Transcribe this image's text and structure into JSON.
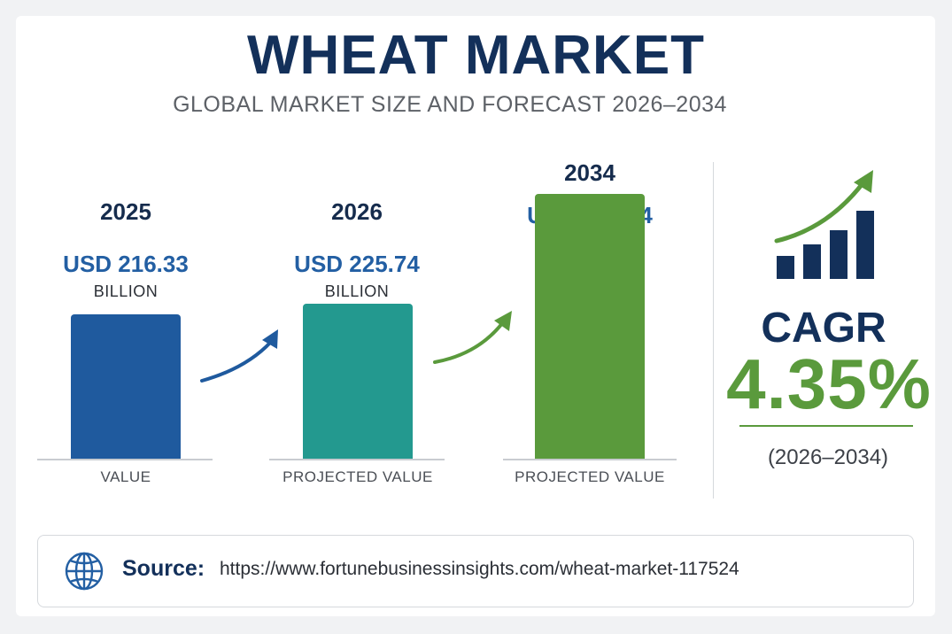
{
  "title": "WHEAT MARKET",
  "subtitle": "GLOBAL MARKET SIZE AND FORECAST 2026–2034",
  "chart_data": {
    "type": "bar",
    "categories": [
      "2025",
      "2026",
      "2034"
    ],
    "values": [
      216.33,
      225.74,
      317.34
    ],
    "value_labels": [
      "USD 216.33",
      "USD 225.74",
      "USD 317.34"
    ],
    "unit_label": "BILLION",
    "axis_labels": [
      "VALUE",
      "PROJECTED VALUE",
      "PROJECTED VALUE"
    ],
    "colors": [
      "#1f5a9e",
      "#23998f",
      "#5a9a3c"
    ],
    "value_colors": [
      "#235fa3",
      "#235fa3",
      "#235fa3"
    ]
  },
  "cagr": {
    "label": "CAGR",
    "value": "4.35%",
    "period": "(2026–2034)"
  },
  "source": {
    "label": "Source:",
    "url": "https://www.fortunebusinessinsights.com/wheat-market-117524"
  },
  "colors": {
    "navy": "#13305a",
    "green": "#5a9a3c",
    "blue": "#1f5a9e",
    "teal": "#23998f"
  }
}
